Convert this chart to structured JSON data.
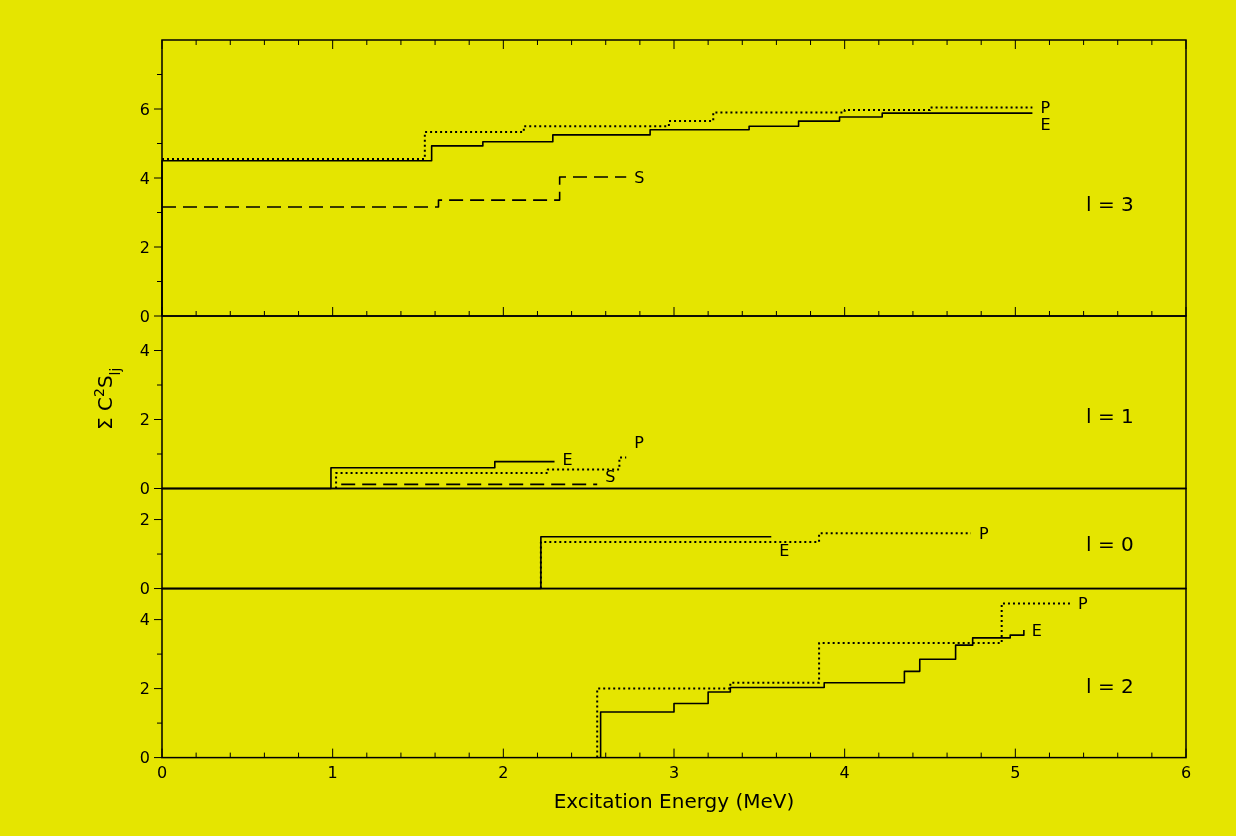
{
  "chart_data": [
    {
      "type": "step",
      "title": "l = 3",
      "ylabel": "Σ C$^{2}$S$_{lj}$",
      "xlim": [
        0,
        6
      ],
      "ylim": [
        0,
        8
      ],
      "xticks": [
        0,
        {
          "value": 0.2,
          "label": null
        },
        {
          "value": 0.4,
          "label": null
        },
        {
          "value": 0.6,
          "label": null
        },
        {
          "value": 0.8,
          "label": null
        },
        1,
        {
          "value": 1.2,
          "label": null
        },
        {
          "value": 1.4,
          "label": null
        },
        {
          "value": 1.6,
          "label": null
        },
        {
          "value": 1.8,
          "label": null
        },
        2,
        {
          "value": 2.2,
          "label": null
        },
        {
          "value": 2.4,
          "label": null
        },
        {
          "value": 2.6,
          "label": null
        },
        {
          "value": 2.8,
          "label": null
        },
        3,
        {
          "value": 3.2,
          "label": null
        },
        {
          "value": 3.4,
          "label": null
        },
        {
          "value": 3.6,
          "label": null
        },
        {
          "value": 3.8,
          "label": null
        },
        4,
        {
          "value": 4.2,
          "label": null
        },
        {
          "value": 4.4,
          "label": null
        },
        {
          "value": 4.6,
          "label": null
        },
        {
          "value": 4.8,
          "label": null
        },
        5,
        {
          "value": 5.2,
          "label": null
        },
        {
          "value": 5.4,
          "label": null
        },
        {
          "value": 5.6,
          "label": null
        },
        {
          "value": 5.8,
          "label": null
        },
        6
      ],
      "yticks": [
        0,
        {
          "value": 1,
          "label": null
        },
        2,
        {
          "value": 3,
          "label": null
        },
        4,
        {
          "value": 5,
          "label": null
        },
        6,
        {
          "value": 7,
          "label": null
        }
      ],
      "tick_labels": "y",
      "series": [
        {
          "name": "E",
          "color": "#000000",
          "line_style": "solid",
          "x": [
            0,
            0,
            1.58,
            1.88,
            2.29,
            2.86,
            3.44,
            3.73,
            3.97,
            4.22,
            5.1
          ],
          "values": [
            0,
            4.5,
            4.93,
            5.05,
            5.25,
            5.4,
            5.5,
            5.65,
            5.77,
            5.88,
            5.88
          ]
        },
        {
          "name": "P",
          "color": "#000000",
          "line_style": "dotted",
          "x": [
            0,
            1.54,
            2.12,
            2.97,
            3.23,
            4.0,
            4.5,
            5.1
          ],
          "values": [
            4.55,
            5.33,
            5.5,
            5.65,
            5.9,
            5.97,
            6.04,
            6.04
          ]
        },
        {
          "name": "S",
          "color": "#000000",
          "line_style": "dashed",
          "x": [
            0,
            1.62,
            2.33,
            2.72
          ],
          "values": [
            3.16,
            3.36,
            4.03,
            4.03
          ]
        }
      ]
    },
    {
      "type": "step",
      "title": "l = 1",
      "xlim": [
        0,
        6
      ],
      "ylim": [
        0,
        5
      ],
      "yticks": [
        0,
        {
          "value": 1,
          "label": null
        },
        2,
        {
          "value": 3,
          "label": null
        },
        4
      ],
      "tick_labels": "y",
      "series": [
        {
          "name": "E",
          "color": "#000000",
          "line_style": "solid",
          "x": [
            0,
            0.99,
            1.95,
            2.3
          ],
          "values": [
            0,
            0.6,
            0.78,
            0.78
          ]
        },
        {
          "name": "P",
          "color": "#000000",
          "line_style": "dotted",
          "x": [
            1.02,
            1.02,
            2.26,
            2.68,
            2.72
          ],
          "values": [
            0,
            0.45,
            0.55,
            0.9,
            0.9
          ]
        },
        {
          "name": "S",
          "color": "#000000",
          "line_style": "dashed",
          "x": [
            1.05,
            2.55
          ],
          "values": [
            0.12,
            0.12
          ]
        }
      ]
    },
    {
      "type": "step",
      "title": "l = 0",
      "xlim": [
        0,
        6
      ],
      "ylim": [
        0,
        2.9
      ],
      "yticks": [
        0,
        {
          "value": 1,
          "label": null
        },
        2
      ],
      "tick_labels": "y",
      "series": [
        {
          "name": "E",
          "color": "#000000",
          "line_style": "solid",
          "x": [
            0,
            2.22,
            3.57
          ],
          "values": [
            0,
            1.5,
            1.5
          ]
        },
        {
          "name": "P",
          "color": "#000000",
          "line_style": "dotted",
          "x": [
            2.22,
            2.22,
            3.85,
            4.74
          ],
          "values": [
            0,
            1.35,
            1.6,
            1.6
          ]
        }
      ]
    },
    {
      "type": "step",
      "title": "l = 2",
      "xlabel": "Excitation Energy (MeV)",
      "xlim": [
        0,
        6
      ],
      "ylim": [
        0,
        4.9
      ],
      "xticks": [
        0,
        {
          "value": 0.2,
          "label": null
        },
        {
          "value": 0.4,
          "label": null
        },
        {
          "value": 0.6,
          "label": null
        },
        {
          "value": 0.8,
          "label": null
        },
        1,
        {
          "value": 1.2,
          "label": null
        },
        {
          "value": 1.4,
          "label": null
        },
        {
          "value": 1.6,
          "label": null
        },
        {
          "value": 1.8,
          "label": null
        },
        2,
        {
          "value": 2.2,
          "label": null
        },
        {
          "value": 2.4,
          "label": null
        },
        {
          "value": 2.6,
          "label": null
        },
        {
          "value": 2.8,
          "label": null
        },
        3,
        {
          "value": 3.2,
          "label": null
        },
        {
          "value": 3.4,
          "label": null
        },
        {
          "value": 3.6,
          "label": null
        },
        {
          "value": 3.8,
          "label": null
        },
        4,
        {
          "value": 4.2,
          "label": null
        },
        {
          "value": 4.4,
          "label": null
        },
        {
          "value": 4.6,
          "label": null
        },
        {
          "value": 4.8,
          "label": null
        },
        5,
        {
          "value": 5.2,
          "label": null
        },
        {
          "value": 5.4,
          "label": null
        },
        {
          "value": 5.6,
          "label": null
        },
        {
          "value": 5.8,
          "label": null
        },
        6
      ],
      "yticks": [
        0,
        {
          "value": 1,
          "label": null
        },
        2,
        {
          "value": 3,
          "label": null
        },
        4
      ],
      "series": [
        {
          "name": "E",
          "color": "#000000",
          "line_style": "solid",
          "x": [
            2.57,
            2.57,
            3.0,
            3.2,
            3.33,
            3.88,
            4.35,
            4.44,
            4.65,
            4.75,
            4.97,
            5.05
          ],
          "values": [
            0,
            1.32,
            1.57,
            1.9,
            2.03,
            2.17,
            2.5,
            2.85,
            3.26,
            3.47,
            3.55,
            3.7
          ]
        },
        {
          "name": "P",
          "color": "#000000",
          "line_style": "dotted",
          "x": [
            2.55,
            2.55,
            3.33,
            3.85,
            4.92,
            5.32
          ],
          "values": [
            0,
            2.0,
            2.17,
            3.32,
            4.47,
            4.47
          ]
        }
      ]
    }
  ]
}
